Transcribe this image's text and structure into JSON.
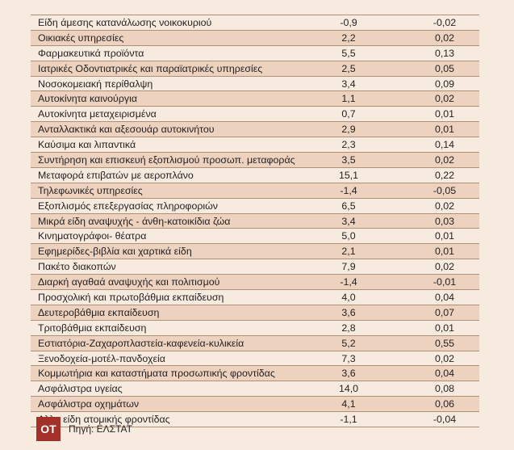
{
  "rows": [
    {
      "label": "Είδη άμεσης κατανάλωσης νοικοκυριού",
      "v1": "-0,9",
      "v2": "-0,02"
    },
    {
      "label": "Οικιακές υπηρεσίες",
      "v1": "2,2",
      "v2": "0,02"
    },
    {
      "label": "Φαρμακευτικά προϊόντα",
      "v1": "5,5",
      "v2": "0,13"
    },
    {
      "label": "Ιατρικές Οδοντιατρικές  και παραϊατρικές υπηρεσίες",
      "v1": "2,5",
      "v2": "0,05"
    },
    {
      "label": "Νοσοκομειακή περίθαλψη",
      "v1": "3,4",
      "v2": "0,09"
    },
    {
      "label": "Αυτοκίνητα καινούργια",
      "v1": "1,1",
      "v2": "0,02"
    },
    {
      "label": "Αυτοκίνητα μεταχειρισμένα",
      "v1": "0,7",
      "v2": "0,01"
    },
    {
      "label": "Ανταλλακτικά και αξεσουάρ αυτοκινήτου",
      "v1": "2,9",
      "v2": "0,01"
    },
    {
      "label": "Καύσιμα και λιπαντικά",
      "v1": "2,3",
      "v2": "0,14"
    },
    {
      "label": "Συντήρηση και επισκευή εξοπλισμού προσωπ. μεταφοράς",
      "v1": "3,5",
      "v2": "0,02"
    },
    {
      "label": "Μεταφορά επιβατών με αεροπλάνο",
      "v1": "15,1",
      "v2": "0,22"
    },
    {
      "label": "Τηλεφωνικές υπηρεσίες",
      "v1": "-1,4",
      "v2": "-0,05"
    },
    {
      "label": "Εξοπλισμός επεξεργασίας πληροφοριών",
      "v1": "6,5",
      "v2": "0,02"
    },
    {
      "label": "Μικρά είδη αναψυχής - άνθη-κατοικίδια ζώα",
      "v1": "3,4",
      "v2": "0,03"
    },
    {
      "label": "Κινηματογράφοι- θέατρα",
      "v1": "5,0",
      "v2": "0,01"
    },
    {
      "label": "Εφημερίδες-βιβλία και χαρτικά είδη",
      "v1": "2,1",
      "v2": "0,01"
    },
    {
      "label": "Πακέτο διακοπών",
      "v1": "7,9",
      "v2": "0,02"
    },
    {
      "label": "Διαρκή αγαθαά αναψυχής και πολιτισμού",
      "v1": "-1,4",
      "v2": "-0,01"
    },
    {
      "label": "Προσχολική και πρωτοβάθμια εκπαίδευση",
      "v1": "4,0",
      "v2": "0,04"
    },
    {
      "label": "Δευτεροβάθμια εκπαίδευση",
      "v1": "3,6",
      "v2": "0,07"
    },
    {
      "label": "Τριτοβάθμια εκπαίδευση",
      "v1": "2,8",
      "v2": "0,01"
    },
    {
      "label": "Εστιατόρια-Ζαχαροπλαστεία-καφενεία-κυλικεία",
      "v1": "5,2",
      "v2": "0,55"
    },
    {
      "label": "Ξενοδοχεία-μοτέλ-πανδοχεία",
      "v1": "7,3",
      "v2": "0,02"
    },
    {
      "label": "Κομμωτήρια και καταστήματα προσωπικής φροντίδας",
      "v1": "3,6",
      "v2": "0,04"
    },
    {
      "label": "Ασφάλιστρα υγείας",
      "v1": "14,0",
      "v2": "0,08"
    },
    {
      "label": "Ασφάλιστρα οχημάτων",
      "v1": "4,1",
      "v2": "0,06"
    },
    {
      "label": "Αλλα είδη ατομικής φροντίδας",
      "v1": "-1,1",
      "v2": "-0,04"
    }
  ],
  "footer": {
    "logo": "ΟΤ",
    "source": "Πηγή: ΕΛΣΤΑΤ"
  },
  "colors": {
    "background": "#f6ebde",
    "row_shade": "#ecd2bf",
    "rule": "#b08f78",
    "logo": "#a3312a"
  }
}
